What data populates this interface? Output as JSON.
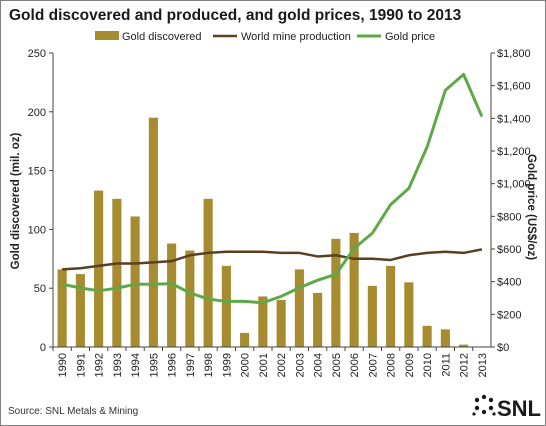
{
  "chart_data": {
    "type": "bar+line",
    "title": "Gold discovered and produced, and gold prices, 1990 to 2013",
    "ylabel_left": "Gold discovered (mil. oz)",
    "ylabel_right": "Gold price (US$/oz)",
    "categories": [
      "1990",
      "1991",
      "1992",
      "1993",
      "1994",
      "1995",
      "1996",
      "1997",
      "1998",
      "1999",
      "2000",
      "2001",
      "2002",
      "2003",
      "2004",
      "2005",
      "2006",
      "2007",
      "2008",
      "2009",
      "2010",
      "2011",
      "2012",
      "2013"
    ],
    "ylim_left": [
      0,
      250
    ],
    "yticks_left": [
      "0",
      "50",
      "100",
      "150",
      "200",
      "250"
    ],
    "ylim_right": [
      0,
      1800
    ],
    "yticks_right": [
      "$0",
      "$200",
      "$400",
      "$600",
      "$800",
      "$1,000",
      "$1,200",
      "$1,400",
      "$1,600",
      "$1,800"
    ],
    "legend_position": "top",
    "grid": false,
    "series": [
      {
        "name": "Gold discovered",
        "type": "bar",
        "axis": "left",
        "color": "#a68b30",
        "values": [
          66,
          62,
          133,
          126,
          111,
          195,
          88,
          82,
          126,
          69,
          12,
          43,
          40,
          66,
          46,
          92,
          97,
          52,
          69,
          55,
          18,
          15,
          2,
          0
        ]
      },
      {
        "name": "World mine production",
        "type": "line",
        "axis": "left",
        "color": "#5b3f22",
        "values": [
          66,
          67,
          69,
          71,
          71,
          72,
          73,
          78,
          80,
          81,
          81,
          81,
          80,
          80,
          77,
          78,
          75,
          75,
          74,
          78,
          80,
          81,
          80,
          83
        ]
      },
      {
        "name": "Gold price",
        "type": "line",
        "axis": "right",
        "color": "#5fa84a",
        "values": [
          384,
          362,
          344,
          360,
          384,
          384,
          388,
          331,
          294,
          279,
          279,
          271,
          310,
          363,
          409,
          445,
          604,
          697,
          872,
          972,
          1225,
          1572,
          1669,
          1411
        ]
      }
    ]
  },
  "source": "Source: SNL Metals & Mining",
  "logo": {
    "text": "SNL",
    "icon": "snl-dots-logo"
  }
}
